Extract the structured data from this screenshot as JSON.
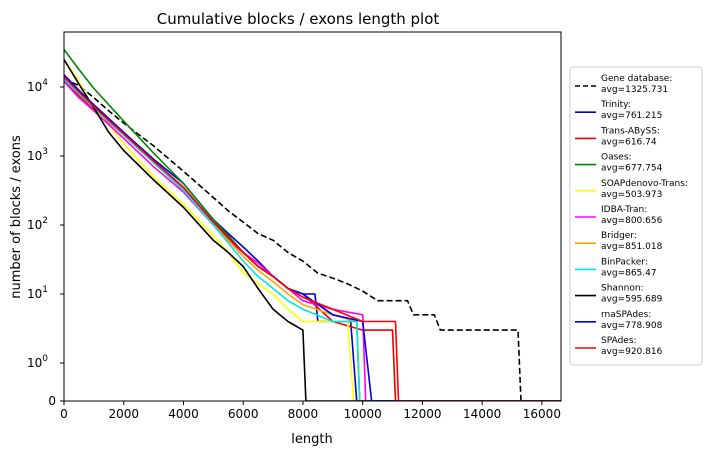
{
  "chart_data": {
    "type": "line",
    "title": "Cumulative blocks / exons length plot",
    "xlabel": "length",
    "ylabel": "number of blocks / exons",
    "xlim": [
      0,
      16640
    ],
    "ylim_note": "symlog scale (linear near 0, log above 1)",
    "y_ticks": [
      {
        "value": 0,
        "label": "0"
      },
      {
        "value": 1,
        "label": "10",
        "exp": "0"
      },
      {
        "value": 10,
        "label": "10",
        "exp": "1"
      },
      {
        "value": 100,
        "label": "10",
        "exp": "2"
      },
      {
        "value": 1000,
        "label": "10",
        "exp": "3"
      },
      {
        "value": 10000,
        "label": "10",
        "exp": "4"
      }
    ],
    "x_ticks": [
      {
        "value": 0,
        "label": "0"
      },
      {
        "value": 2000,
        "label": "2000"
      },
      {
        "value": 4000,
        "label": "4000"
      },
      {
        "value": 6000,
        "label": "6000"
      },
      {
        "value": 8000,
        "label": "8000"
      },
      {
        "value": 10000,
        "label": "10000"
      },
      {
        "value": 12000,
        "label": "12000"
      },
      {
        "value": 14000,
        "label": "14000"
      },
      {
        "value": 16000,
        "label": "16000"
      }
    ],
    "legend_position": "right, outside plot",
    "series": [
      {
        "name": "Gene database:",
        "avg": "avg=1325.731",
        "color": "#000000",
        "dash": true,
        "points": [
          [
            0,
            13000
          ],
          [
            500,
            10500
          ],
          [
            1000,
            7000
          ],
          [
            1500,
            4500
          ],
          [
            2000,
            3000
          ],
          [
            3000,
            1400
          ],
          [
            4000,
            600
          ],
          [
            5000,
            250
          ],
          [
            5500,
            160
          ],
          [
            6000,
            110
          ],
          [
            6500,
            75
          ],
          [
            7000,
            60
          ],
          [
            7500,
            40
          ],
          [
            8000,
            30
          ],
          [
            8500,
            20
          ],
          [
            9000,
            17
          ],
          [
            9500,
            14
          ],
          [
            10000,
            11
          ],
          [
            10500,
            8
          ],
          [
            11500,
            8
          ],
          [
            11500,
            8
          ],
          [
            11700,
            5
          ],
          [
            12400,
            5
          ],
          [
            12400,
            5
          ],
          [
            12600,
            3
          ],
          [
            15200,
            3
          ],
          [
            15300,
            0
          ],
          [
            16640,
            0
          ]
        ]
      },
      {
        "name": "Trinity:",
        "avg": "avg=761.215",
        "color": "#0000cc",
        "dash": false,
        "points": [
          [
            0,
            15000
          ],
          [
            500,
            8500
          ],
          [
            1000,
            5500
          ],
          [
            2000,
            2200
          ],
          [
            3000,
            900
          ],
          [
            4000,
            400
          ],
          [
            5000,
            120
          ],
          [
            5500,
            75
          ],
          [
            6000,
            48
          ],
          [
            6500,
            30
          ],
          [
            7000,
            18
          ],
          [
            7500,
            12
          ],
          [
            8000,
            10
          ],
          [
            8400,
            10
          ],
          [
            8500,
            4
          ],
          [
            9600,
            4
          ],
          [
            9800,
            0
          ],
          [
            16640,
            0
          ]
        ]
      },
      {
        "name": "Trans-ABySS:",
        "avg": "avg=616.74",
        "color": "#ee0000",
        "dash": false,
        "points": [
          [
            0,
            12000
          ],
          [
            500,
            7500
          ],
          [
            1000,
            4800
          ],
          [
            2000,
            2000
          ],
          [
            3000,
            800
          ],
          [
            4000,
            350
          ],
          [
            5000,
            110
          ],
          [
            5500,
            70
          ],
          [
            6000,
            40
          ],
          [
            6500,
            25
          ],
          [
            7000,
            18
          ],
          [
            7500,
            12
          ],
          [
            8000,
            10
          ],
          [
            9000,
            4
          ],
          [
            10000,
            3
          ],
          [
            11000,
            3
          ],
          [
            11100,
            0
          ],
          [
            16640,
            0
          ]
        ]
      },
      {
        "name": "Oases:",
        "avg": "avg=677.754",
        "color": "#008800",
        "dash": false,
        "points": [
          [
            0,
            35000
          ],
          [
            500,
            18000
          ],
          [
            1000,
            9500
          ],
          [
            2000,
            3200
          ],
          [
            3000,
            1100
          ],
          [
            4000,
            400
          ],
          [
            5000,
            120
          ],
          [
            5500,
            70
          ],
          [
            6000,
            40
          ],
          [
            6500,
            25
          ],
          [
            7000,
            18
          ],
          [
            7500,
            12
          ],
          [
            8000,
            10
          ],
          [
            9000,
            5
          ],
          [
            9800,
            4
          ],
          [
            9900,
            0
          ],
          [
            16640,
            0
          ]
        ]
      },
      {
        "name": "SOAPdenovo-Trans:",
        "avg": "avg=503.973",
        "color": "#ffff00",
        "dash": false,
        "points": [
          [
            0,
            25000
          ],
          [
            500,
            12000
          ],
          [
            1000,
            5000
          ],
          [
            1500,
            2800
          ],
          [
            2000,
            1500
          ],
          [
            3000,
            500
          ],
          [
            4000,
            200
          ],
          [
            5000,
            70
          ],
          [
            5500,
            40
          ],
          [
            6000,
            20
          ],
          [
            7000,
            10
          ],
          [
            7500,
            6
          ],
          [
            8000,
            4
          ],
          [
            8500,
            4
          ],
          [
            9500,
            4
          ],
          [
            9700,
            0
          ],
          [
            16640,
            0
          ]
        ]
      },
      {
        "name": "IDBA-Tran:",
        "avg": "avg=800.656",
        "color": "#ff00ff",
        "dash": false,
        "points": [
          [
            0,
            12000
          ],
          [
            500,
            7000
          ],
          [
            1000,
            4500
          ],
          [
            2000,
            1800
          ],
          [
            3000,
            700
          ],
          [
            4000,
            300
          ],
          [
            5000,
            100
          ],
          [
            5500,
            60
          ],
          [
            6000,
            40
          ],
          [
            6500,
            28
          ],
          [
            7000,
            18
          ],
          [
            7500,
            12
          ],
          [
            8000,
            8
          ],
          [
            9000,
            6
          ],
          [
            10000,
            5
          ],
          [
            10100,
            0
          ],
          [
            16640,
            0
          ]
        ]
      },
      {
        "name": "Bridger:",
        "avg": "avg=851.018",
        "color": "#ffa500",
        "dash": false,
        "points": [
          [
            0,
            13000
          ],
          [
            500,
            8000
          ],
          [
            1000,
            5000
          ],
          [
            2000,
            2000
          ],
          [
            3000,
            800
          ],
          [
            4000,
            320
          ],
          [
            5000,
            100
          ],
          [
            5500,
            60
          ],
          [
            6000,
            35
          ],
          [
            6500,
            22
          ],
          [
            7000,
            15
          ],
          [
            7500,
            10
          ],
          [
            8000,
            7
          ],
          [
            9000,
            5
          ],
          [
            9800,
            4
          ],
          [
            9900,
            0
          ],
          [
            16640,
            0
          ]
        ]
      },
      {
        "name": "BinPacker:",
        "avg": "avg=865.47",
        "color": "#00e5e5",
        "dash": false,
        "points": [
          [
            0,
            13000
          ],
          [
            500,
            8000
          ],
          [
            1000,
            5000
          ],
          [
            2000,
            2000
          ],
          [
            3000,
            800
          ],
          [
            4000,
            320
          ],
          [
            5000,
            100
          ],
          [
            5500,
            55
          ],
          [
            6000,
            30
          ],
          [
            6500,
            18
          ],
          [
            7000,
            12
          ],
          [
            7500,
            8
          ],
          [
            8000,
            6
          ],
          [
            9000,
            4
          ],
          [
            9800,
            4
          ],
          [
            9900,
            0
          ],
          [
            16640,
            0
          ]
        ]
      },
      {
        "name": "Shannon:",
        "avg": "avg=595.689",
        "color": "#000000",
        "dash": false,
        "points": [
          [
            0,
            25000
          ],
          [
            500,
            11000
          ],
          [
            1000,
            5000
          ],
          [
            1500,
            2200
          ],
          [
            2000,
            1200
          ],
          [
            3000,
            450
          ],
          [
            4000,
            180
          ],
          [
            5000,
            60
          ],
          [
            5500,
            40
          ],
          [
            6000,
            25
          ],
          [
            6500,
            12
          ],
          [
            7000,
            6
          ],
          [
            7500,
            4
          ],
          [
            8000,
            3
          ],
          [
            8100,
            0
          ],
          [
            16640,
            0
          ]
        ]
      },
      {
        "name": "rnaSPAdes:",
        "avg": "avg=778.908",
        "color": "#0000ee",
        "dash": false,
        "points": [
          [
            0,
            15000
          ],
          [
            500,
            9000
          ],
          [
            1000,
            5500
          ],
          [
            2000,
            2200
          ],
          [
            3000,
            850
          ],
          [
            4000,
            350
          ],
          [
            5000,
            110
          ],
          [
            5500,
            65
          ],
          [
            6000,
            40
          ],
          [
            6500,
            25
          ],
          [
            7000,
            18
          ],
          [
            7500,
            12
          ],
          [
            8000,
            10
          ],
          [
            9000,
            5
          ],
          [
            10000,
            4
          ],
          [
            10300,
            0
          ],
          [
            16640,
            0
          ]
        ]
      },
      {
        "name": "SPAdes:",
        "avg": "avg=920.816",
        "color": "#ff0000",
        "dash": false,
        "points": [
          [
            0,
            14000
          ],
          [
            500,
            8500
          ],
          [
            1000,
            5200
          ],
          [
            2000,
            2100
          ],
          [
            3000,
            850
          ],
          [
            4000,
            350
          ],
          [
            5000,
            110
          ],
          [
            5500,
            65
          ],
          [
            6000,
            40
          ],
          [
            6500,
            25
          ],
          [
            7000,
            18
          ],
          [
            7500,
            12
          ],
          [
            8000,
            9
          ],
          [
            9000,
            6
          ],
          [
            10000,
            4
          ],
          [
            10100,
            4
          ],
          [
            11100,
            4
          ],
          [
            11200,
            0
          ],
          [
            16640,
            0
          ]
        ]
      }
    ]
  }
}
